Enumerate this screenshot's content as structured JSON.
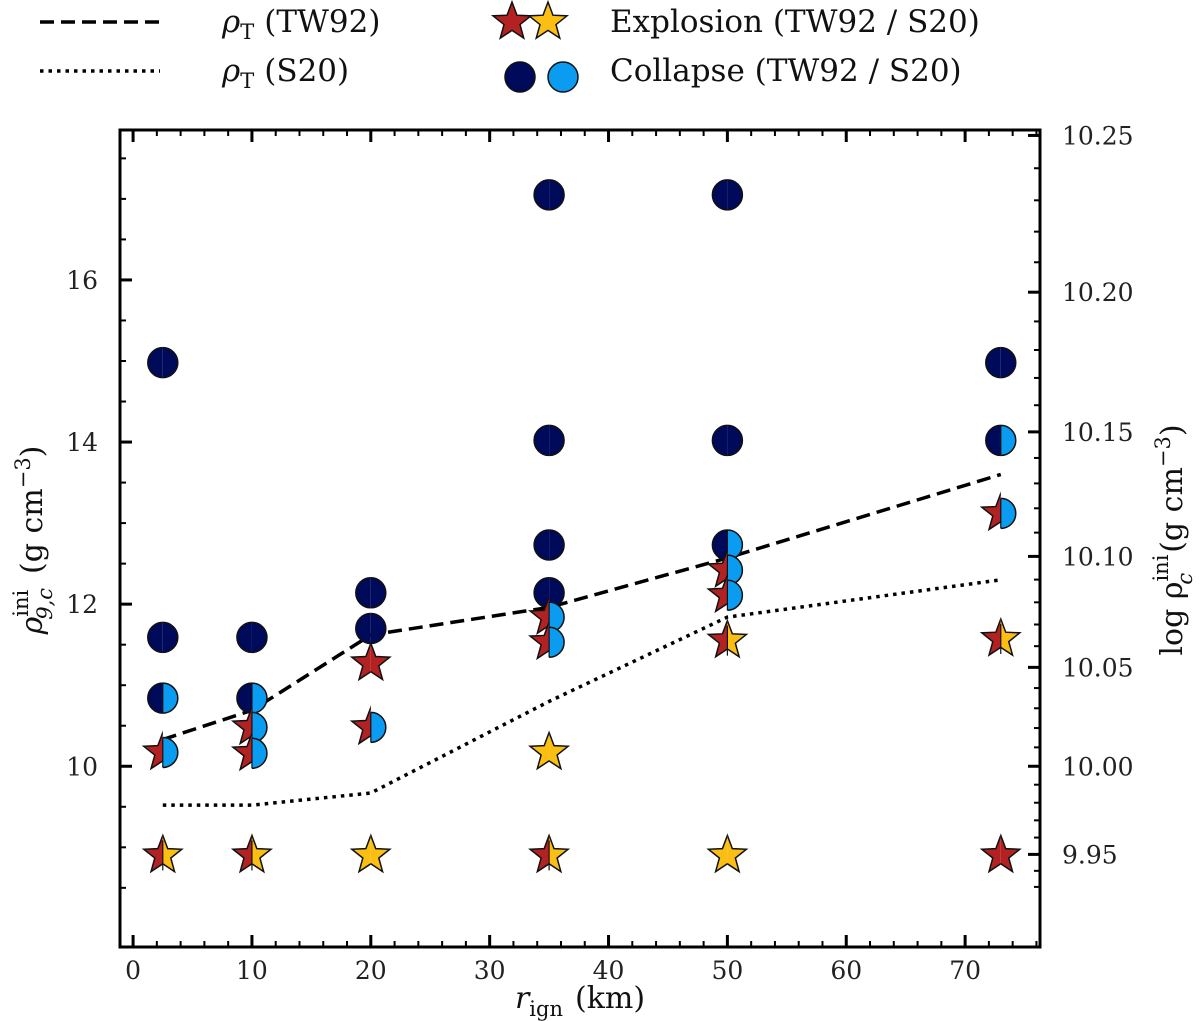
{
  "chart_data": {
    "type": "scatter",
    "xlabel": {
      "main": "r",
      "sub": "ign",
      "unit": "(km)"
    },
    "ylabel_left": {
      "main": "ρ",
      "sup": "ini",
      "sub": "9,c",
      "unit": "(g cm",
      "exp": "−3",
      "close": ")"
    },
    "ylabel_right": {
      "prefix": "log ρ",
      "sup": "ini",
      "sub": "c",
      "unit": "(g cm",
      "exp": "−3",
      "close": ")"
    },
    "xlim": [
      -1.1,
      76.3
    ],
    "ylim": [
      7.77,
      17.85
    ],
    "x_ticks": [
      "0",
      "10",
      "20",
      "30",
      "40",
      "50",
      "60",
      "70"
    ],
    "y_ticks_left": [
      "10",
      "12",
      "14",
      "16"
    ],
    "y_ticks_right": [
      "9.95",
      "10.00",
      "10.05",
      "10.10",
      "10.15",
      "10.20",
      "10.25"
    ],
    "legend": {
      "placement": "top, outside",
      "entries": [
        {
          "label_main": "ρ",
          "label_sub": "T",
          "label_rest": "(TW92)",
          "style": "dashed"
        },
        {
          "label_main": "ρ",
          "label_sub": "T",
          "label_rest": "(S20)",
          "style": "dotted"
        },
        {
          "label": "Explosion (TW92 / S20)",
          "marker": "star"
        },
        {
          "label": "Collapse (TW92 / S20)",
          "marker": "circle"
        }
      ]
    },
    "colors": {
      "explosion_tw92": "#b22222",
      "explosion_s20": "#fbbf14",
      "collapse_tw92": "#000a5a",
      "collapse_s20": "#0a9cf0"
    },
    "lines": [
      {
        "name": "ρT (TW92)",
        "style": "dashed",
        "x": [
          2.5,
          10,
          20,
          35,
          50,
          73
        ],
        "y": [
          10.33,
          10.69,
          11.62,
          11.96,
          12.57,
          13.6
        ]
      },
      {
        "name": "ρT (S20)",
        "style": "dotted",
        "x": [
          2.5,
          10,
          20,
          35,
          50,
          73
        ],
        "y": [
          9.52,
          9.52,
          9.67,
          10.8,
          11.84,
          12.3
        ]
      }
    ],
    "points": [
      {
        "x": 2.5,
        "y": 14.98,
        "tw92": "collapse",
        "s20": null
      },
      {
        "x": 2.5,
        "y": 11.59,
        "tw92": "collapse",
        "s20": null
      },
      {
        "x": 2.5,
        "y": 10.84,
        "tw92": "collapse",
        "s20": "collapse"
      },
      {
        "x": 2.5,
        "y": 10.17,
        "tw92": "explosion",
        "s20": "collapse"
      },
      {
        "x": 2.5,
        "y": 8.9,
        "tw92": "explosion",
        "s20": "explosion"
      },
      {
        "x": 10,
        "y": 11.59,
        "tw92": "collapse",
        "s20": null
      },
      {
        "x": 10,
        "y": 10.84,
        "tw92": "collapse",
        "s20": "collapse"
      },
      {
        "x": 10,
        "y": 10.48,
        "tw92": "explosion",
        "s20": "collapse"
      },
      {
        "x": 10,
        "y": 10.16,
        "tw92": "explosion",
        "s20": "collapse"
      },
      {
        "x": 10,
        "y": 8.9,
        "tw92": "explosion",
        "s20": "explosion"
      },
      {
        "x": 20,
        "y": 12.14,
        "tw92": "collapse",
        "s20": null
      },
      {
        "x": 20,
        "y": 11.7,
        "tw92": "collapse",
        "s20": null
      },
      {
        "x": 20,
        "y": 11.27,
        "tw92": "explosion",
        "s20": null
      },
      {
        "x": 20,
        "y": 10.48,
        "tw92": "explosion",
        "s20": "collapse"
      },
      {
        "x": 20,
        "y": 8.9,
        "tw92": null,
        "s20": "explosion"
      },
      {
        "x": 35,
        "y": 17.05,
        "tw92": "collapse",
        "s20": null
      },
      {
        "x": 35,
        "y": 14.02,
        "tw92": "collapse",
        "s20": null
      },
      {
        "x": 35,
        "y": 12.73,
        "tw92": "collapse",
        "s20": null
      },
      {
        "x": 35,
        "y": 12.14,
        "tw92": "collapse",
        "s20": null
      },
      {
        "x": 35,
        "y": 11.84,
        "tw92": "explosion",
        "s20": "collapse"
      },
      {
        "x": 35,
        "y": 11.53,
        "tw92": "explosion",
        "s20": "collapse"
      },
      {
        "x": 35,
        "y": 10.17,
        "tw92": null,
        "s20": "explosion"
      },
      {
        "x": 35,
        "y": 8.9,
        "tw92": "explosion",
        "s20": "explosion"
      },
      {
        "x": 50,
        "y": 17.05,
        "tw92": "collapse",
        "s20": null
      },
      {
        "x": 50,
        "y": 14.02,
        "tw92": "collapse",
        "s20": null
      },
      {
        "x": 50,
        "y": 12.73,
        "tw92": "collapse",
        "s20": "collapse"
      },
      {
        "x": 50,
        "y": 12.42,
        "tw92": "explosion",
        "s20": "collapse"
      },
      {
        "x": 50,
        "y": 12.11,
        "tw92": "explosion",
        "s20": "collapse"
      },
      {
        "x": 50,
        "y": 11.55,
        "tw92": "explosion",
        "s20": "explosion"
      },
      {
        "x": 50,
        "y": 8.9,
        "tw92": null,
        "s20": "explosion"
      },
      {
        "x": 73,
        "y": 14.98,
        "tw92": "collapse",
        "s20": null
      },
      {
        "x": 73,
        "y": 14.02,
        "tw92": "collapse",
        "s20": "collapse"
      },
      {
        "x": 73,
        "y": 13.12,
        "tw92": "explosion",
        "s20": "collapse"
      },
      {
        "x": 73,
        "y": 11.57,
        "tw92": "explosion",
        "s20": "explosion"
      },
      {
        "x": 73,
        "y": 8.9,
        "tw92": "explosion",
        "s20": null
      }
    ]
  }
}
